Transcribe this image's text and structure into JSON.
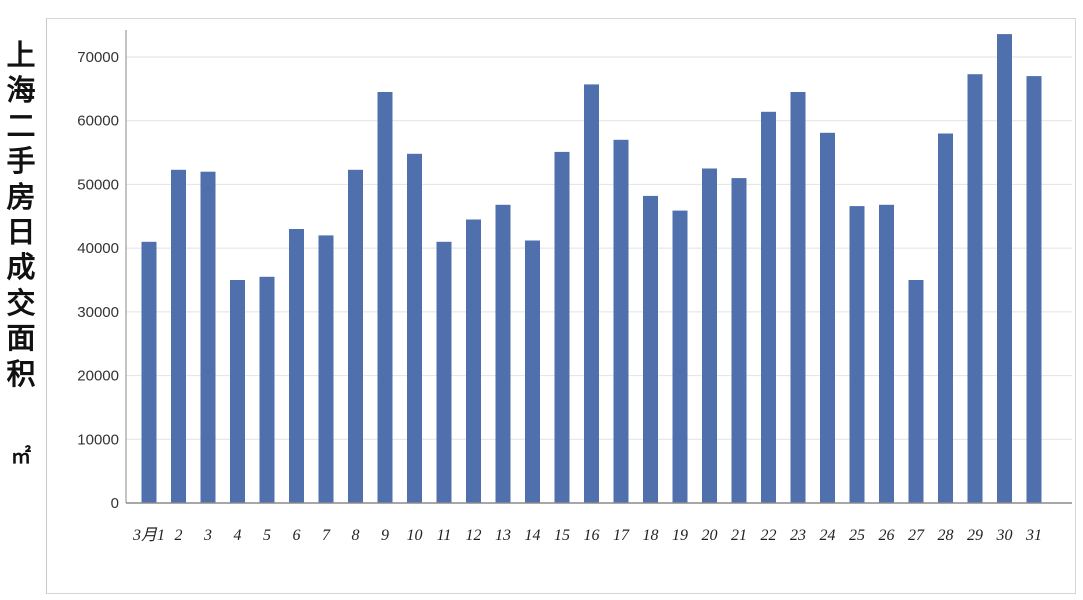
{
  "chart_data": {
    "type": "bar",
    "title": "",
    "ylabel": "上海二手房日成交面积",
    "ylabel_unit": "㎡",
    "xlabel": "",
    "categories": [
      "3月1",
      "2",
      "3",
      "4",
      "5",
      "6",
      "7",
      "8",
      "9",
      "10",
      "11",
      "12",
      "13",
      "14",
      "15",
      "16",
      "17",
      "18",
      "19",
      "20",
      "21",
      "22",
      "23",
      "24",
      "25",
      "26",
      "27",
      "28",
      "29",
      "30",
      "31"
    ],
    "values": [
      41000,
      52300,
      52000,
      35000,
      35500,
      43000,
      42000,
      52300,
      64500,
      54800,
      41000,
      44500,
      46800,
      41200,
      55100,
      65700,
      57000,
      48200,
      45900,
      52500,
      51000,
      61400,
      64500,
      58100,
      46600,
      46800,
      35000,
      58000,
      67300,
      73600,
      67000
    ],
    "ylim": [
      0,
      75000
    ],
    "yticks": [
      "0",
      "10000",
      "20000",
      "30000",
      "40000",
      "50000",
      "60000",
      "70000"
    ],
    "grid": true,
    "colors": {
      "bar": "#4f6fad",
      "grid": "#e2e2e2",
      "axis": "#8a8a8a",
      "tick_text": "#333333"
    }
  }
}
